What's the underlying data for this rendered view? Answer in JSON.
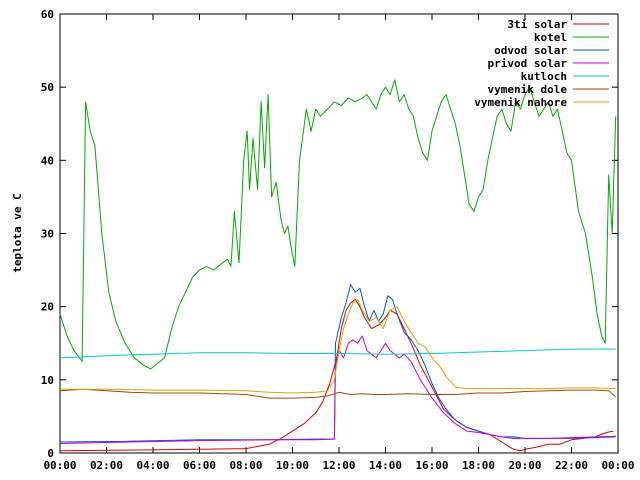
{
  "chart_data": {
    "type": "line",
    "title": "",
    "xlabel": "",
    "ylabel": "teplota ve C",
    "ylim": [
      0,
      60
    ],
    "yticks": [
      0,
      10,
      20,
      30,
      40,
      50,
      60
    ],
    "xlim": [
      0,
      24
    ],
    "xticks": [
      "00:00",
      "02:00",
      "04:00",
      "06:00",
      "08:00",
      "10:00",
      "12:00",
      "14:00",
      "16:00",
      "18:00",
      "20:00",
      "22:00",
      "00:00"
    ],
    "grid": false,
    "legend_position": "top-right",
    "series": [
      {
        "name": "3ti solar",
        "color": "#dd0000",
        "x": [
          0,
          6,
          8,
          9,
          9.5,
          10,
          10.5,
          11,
          11.3,
          11.6,
          11.9,
          12.1,
          12.3,
          12.5,
          12.7,
          12.9,
          13.1,
          13.4,
          13.7,
          14,
          14.2,
          14.5,
          14.8,
          15.1,
          15.5,
          16,
          16.5,
          17,
          17.5,
          18,
          18.5,
          19,
          19.5,
          19.8,
          20,
          20.5,
          21,
          21.5,
          22,
          22.5,
          23,
          23.5,
          23.8
        ],
        "y": [
          0.3,
          0.5,
          0.6,
          1.2,
          2.0,
          3.0,
          4.0,
          5.5,
          7.0,
          9.5,
          13.0,
          17.0,
          19.5,
          20.5,
          21.0,
          20.0,
          18.5,
          17.0,
          17.5,
          18.5,
          19.5,
          19.0,
          17.0,
          15.0,
          12.0,
          9.0,
          6.0,
          4.5,
          3.5,
          3.0,
          2.5,
          1.5,
          0.5,
          0.3,
          0.5,
          0.8,
          1.2,
          1.2,
          1.8,
          2.0,
          2.2,
          2.8,
          3.0
        ]
      },
      {
        "name": "kotel",
        "color": "#00aa00",
        "x": [
          0,
          0.3,
          0.6,
          0.95,
          1.1,
          1.3,
          1.5,
          1.8,
          2.1,
          2.4,
          2.8,
          3.2,
          3.6,
          3.9,
          4.1,
          4.3,
          4.5,
          4.8,
          5.1,
          5.4,
          5.7,
          6.0,
          6.3,
          6.6,
          7.0,
          7.2,
          7.35,
          7.5,
          7.7,
          7.9,
          8.05,
          8.15,
          8.3,
          8.5,
          8.65,
          8.8,
          8.95,
          9.1,
          9.3,
          9.5,
          9.65,
          9.8,
          9.95,
          10.1,
          10.3,
          10.6,
          10.8,
          11.0,
          11.2,
          11.5,
          11.8,
          12.1,
          12.4,
          12.7,
          13.0,
          13.2,
          13.4,
          13.6,
          13.8,
          14.0,
          14.2,
          14.4,
          14.6,
          14.8,
          15.0,
          15.2,
          15.4,
          15.6,
          15.8,
          16.0,
          16.2,
          16.4,
          16.6,
          16.8,
          17.0,
          17.2,
          17.4,
          17.6,
          17.8,
          18.0,
          18.2,
          18.4,
          18.6,
          18.8,
          19.0,
          19.2,
          19.4,
          19.6,
          19.8,
          20.0,
          20.2,
          20.4,
          20.6,
          20.8,
          21.0,
          21.2,
          21.4,
          21.6,
          21.8,
          22.0,
          22.3,
          22.6,
          22.9,
          23.1,
          23.3,
          23.45,
          23.6,
          23.75,
          23.9
        ],
        "y": [
          19,
          16,
          14,
          12.5,
          48,
          44,
          42,
          30,
          22,
          18,
          15,
          13,
          12,
          11.5,
          12,
          12.5,
          13,
          17,
          20,
          22,
          24,
          25,
          25.5,
          25,
          26,
          26.5,
          25.5,
          33,
          26,
          40,
          44,
          36,
          43,
          36,
          48,
          39,
          49,
          35,
          37,
          32,
          30,
          31,
          28,
          25.5,
          40,
          47,
          44,
          47,
          46,
          47,
          48,
          47.5,
          48.5,
          48,
          48.5,
          49,
          48,
          47,
          49,
          50,
          49,
          51,
          48,
          49,
          47,
          46,
          43,
          41,
          40,
          44,
          46,
          48,
          49,
          47,
          45,
          42,
          38,
          34,
          33,
          35,
          36,
          40,
          43,
          46,
          47,
          45,
          44,
          48,
          47,
          49,
          50,
          48,
          46,
          47,
          48,
          46,
          47,
          44,
          41,
          40,
          33,
          30,
          24,
          19,
          16,
          15,
          38,
          30,
          46
        ]
      },
      {
        "name": "odvod solar",
        "color": "#0055dd",
        "x": [
          0,
          3,
          6,
          9,
          11,
          11.8,
          11.85,
          12.1,
          12.3,
          12.5,
          12.7,
          12.9,
          13.1,
          13.3,
          13.5,
          13.7,
          13.9,
          14.1,
          14.3,
          14.5,
          14.8,
          15.1,
          15.4,
          15.7,
          16.0,
          16.3,
          16.6,
          17.0,
          17.5,
          18,
          18.5,
          19,
          19.5,
          20,
          21,
          22,
          23,
          23.9
        ],
        "y": [
          1.5,
          1.6,
          1.8,
          1.8,
          1.9,
          1.9,
          15.0,
          18.5,
          20.5,
          23.0,
          22.0,
          22.5,
          20.0,
          18.0,
          19.5,
          18.0,
          19.0,
          21.5,
          21.0,
          19.0,
          16.5,
          15.5,
          14.0,
          12.0,
          9.5,
          7.5,
          6.0,
          4.5,
          3.5,
          3.0,
          2.5,
          2.2,
          2.2,
          2.0,
          2.0,
          2.0,
          2.1,
          2.2
        ]
      },
      {
        "name": "privod solar",
        "color": "#cc00cc",
        "x": [
          0,
          3,
          6,
          9,
          11,
          11.8,
          11.85,
          12.0,
          12.2,
          12.4,
          12.6,
          12.8,
          13.0,
          13.2,
          13.4,
          13.6,
          13.8,
          14.0,
          14.2,
          14.4,
          14.6,
          14.8,
          15.1,
          15.5,
          16.0,
          16.5,
          17.0,
          17.5,
          18,
          18.5,
          19,
          19.5,
          20,
          21,
          22,
          23,
          23.9
        ],
        "y": [
          1.3,
          1.5,
          1.7,
          1.8,
          1.8,
          1.9,
          12.0,
          14.0,
          13.0,
          15.0,
          15.5,
          15.0,
          16.0,
          14.0,
          13.5,
          13.0,
          14.0,
          15.0,
          14.0,
          13.5,
          13.0,
          13.5,
          12.5,
          10.0,
          7.5,
          5.5,
          4.0,
          3.0,
          2.8,
          2.5,
          2.2,
          2.0,
          2.0,
          2.0,
          2.1,
          2.2,
          2.3
        ]
      },
      {
        "name": "kutloch",
        "color": "#00cccc",
        "x": [
          0,
          2,
          4,
          6,
          8,
          10,
          12,
          14,
          16,
          18,
          20,
          22,
          23.9
        ],
        "y": [
          13.0,
          13.3,
          13.5,
          13.7,
          13.7,
          13.6,
          13.6,
          13.5,
          13.6,
          13.8,
          14.0,
          14.2,
          14.2
        ]
      },
      {
        "name": "vymenik dole",
        "color": "#aa4400",
        "x": [
          0,
          1,
          2,
          3,
          4,
          5,
          6,
          7,
          8,
          9,
          10,
          11,
          11.5,
          12,
          12.5,
          13,
          13.5,
          14,
          15,
          16,
          17,
          18,
          19,
          20,
          21,
          22,
          23,
          23.6,
          23.9
        ],
        "y": [
          8.5,
          8.7,
          8.5,
          8.3,
          8.2,
          8.2,
          8.2,
          8.1,
          8.0,
          7.5,
          7.5,
          7.6,
          7.8,
          8.3,
          8.0,
          8.1,
          8.0,
          8.0,
          8.1,
          8.0,
          8.0,
          8.2,
          8.2,
          8.4,
          8.5,
          8.6,
          8.6,
          8.5,
          7.7
        ]
      },
      {
        "name": "vymenik nahore",
        "color": "#ccaa00",
        "x": [
          0,
          2,
          4,
          6,
          8,
          9,
          10,
          11,
          11.5,
          11.8,
          12.0,
          12.2,
          12.4,
          12.6,
          12.8,
          13.0,
          13.3,
          13.6,
          13.9,
          14.2,
          14.5,
          14.8,
          15.1,
          15.4,
          15.7,
          16.0,
          16.3,
          16.6,
          17.0,
          17.5,
          18,
          19,
          20,
          21,
          22,
          23,
          23.9
        ],
        "y": [
          8.7,
          8.7,
          8.6,
          8.6,
          8.5,
          8.3,
          8.2,
          8.3,
          8.5,
          10.0,
          14.0,
          17.0,
          19.0,
          20.5,
          21.0,
          19.5,
          18.0,
          18.5,
          17.0,
          19.5,
          20.0,
          18.0,
          16.5,
          15.0,
          14.5,
          13.0,
          12.0,
          10.5,
          9.0,
          8.8,
          8.8,
          8.8,
          8.8,
          8.8,
          8.9,
          8.9,
          8.8
        ]
      }
    ]
  }
}
